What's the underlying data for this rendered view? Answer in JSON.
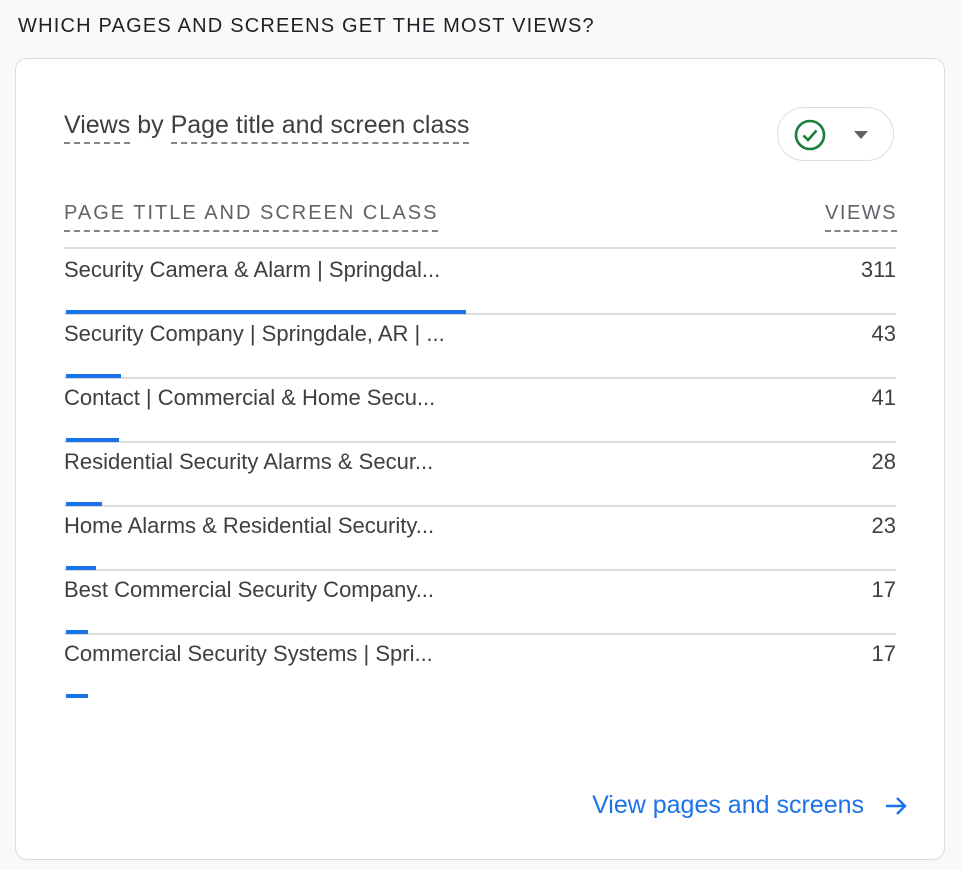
{
  "section_title": "WHICH PAGES AND SCREENS GET THE MOST VIEWS?",
  "card": {
    "title_metric": "Views",
    "title_by": "by",
    "title_dimension": "Page title and screen class",
    "compare_icon": "check-circle-icon",
    "compare_color": "#188038",
    "dropdown_icon": "caret-down-icon",
    "columns": {
      "dimension": "PAGE TITLE AND SCREEN CLASS",
      "metric": "VIEWS"
    },
    "bar_color": "#1a73e8",
    "rows": [
      {
        "name": "Security Camera & Alarm | Springdal...",
        "views": 311
      },
      {
        "name": "Security Company | Springdale, AR | ...",
        "views": 43
      },
      {
        "name": "Contact | Commercial & Home Secu...",
        "views": 41
      },
      {
        "name": "Residential Security Alarms & Secur...",
        "views": 28
      },
      {
        "name": "Home Alarms & Residential Security...",
        "views": 23
      },
      {
        "name": "Best Commercial Security Company...",
        "views": 17
      },
      {
        "name": "Commercial Security Systems | Spri...",
        "views": 17
      }
    ],
    "link_label": "View pages and screens",
    "link_icon": "arrow-right-icon"
  }
}
